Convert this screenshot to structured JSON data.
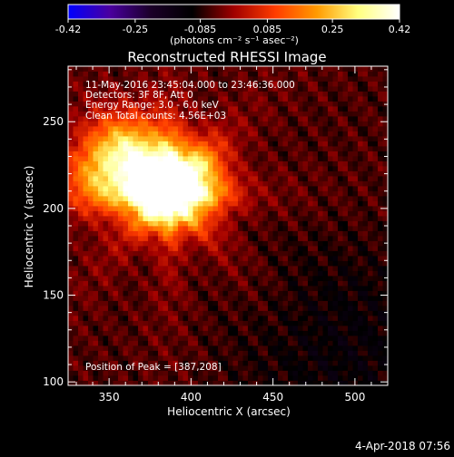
{
  "chart_data": {
    "type": "heatmap",
    "title": "Reconstructed RHESSI Image",
    "xlabel": "Heliocentric X (arcsec)",
    "ylabel": "Heliocentric Y (arcsec)",
    "xlim": [
      325,
      520
    ],
    "ylim": [
      98,
      282
    ],
    "x_ticks": [
      350,
      400,
      450,
      500
    ],
    "y_ticks": [
      100,
      150,
      200,
      250
    ],
    "x_tick_labels": [
      "350",
      "400",
      "450",
      "500"
    ],
    "y_tick_labels": [
      "100",
      "150",
      "200",
      "250"
    ],
    "colorbar": {
      "range": [
        -0.42,
        0.42
      ],
      "ticks": [
        -0.42,
        -0.25,
        -0.085,
        0.085,
        0.25,
        0.42
      ],
      "tick_labels": [
        "-0.42",
        "-0.25",
        "-0.085",
        "0.085",
        "0.25",
        "0.42"
      ],
      "unit_label": "(photons cm⁻² s⁻¹ asec⁻²)",
      "colors": [
        "#0000ff",
        "#4a00a0",
        "#1a0028",
        "#000000",
        "#a00000",
        "#ff3c00",
        "#ff9a00",
        "#ffff80",
        "#ffffff"
      ]
    },
    "annotations": [
      "11-May-2016 23:45:04.000 to 23:46:36.000",
      "Detectors: 3F 8F, Att 0",
      "Energy Range: 3.0 - 6.0 keV",
      "Clean     Total counts: 4.56E+03"
    ],
    "peak": {
      "label": "Position of Peak = [387,208]",
      "x": 387,
      "y": 208
    },
    "sources": [
      {
        "x": 380,
        "y": 210,
        "value": 0.42
      },
      {
        "x": 400,
        "y": 215,
        "value": 0.3
      },
      {
        "x": 345,
        "y": 220,
        "value": 0.2
      },
      {
        "x": 365,
        "y": 235,
        "value": 0.18
      }
    ],
    "background_level": -0.06,
    "timestamp": "4-Apr-2018 07:56"
  }
}
